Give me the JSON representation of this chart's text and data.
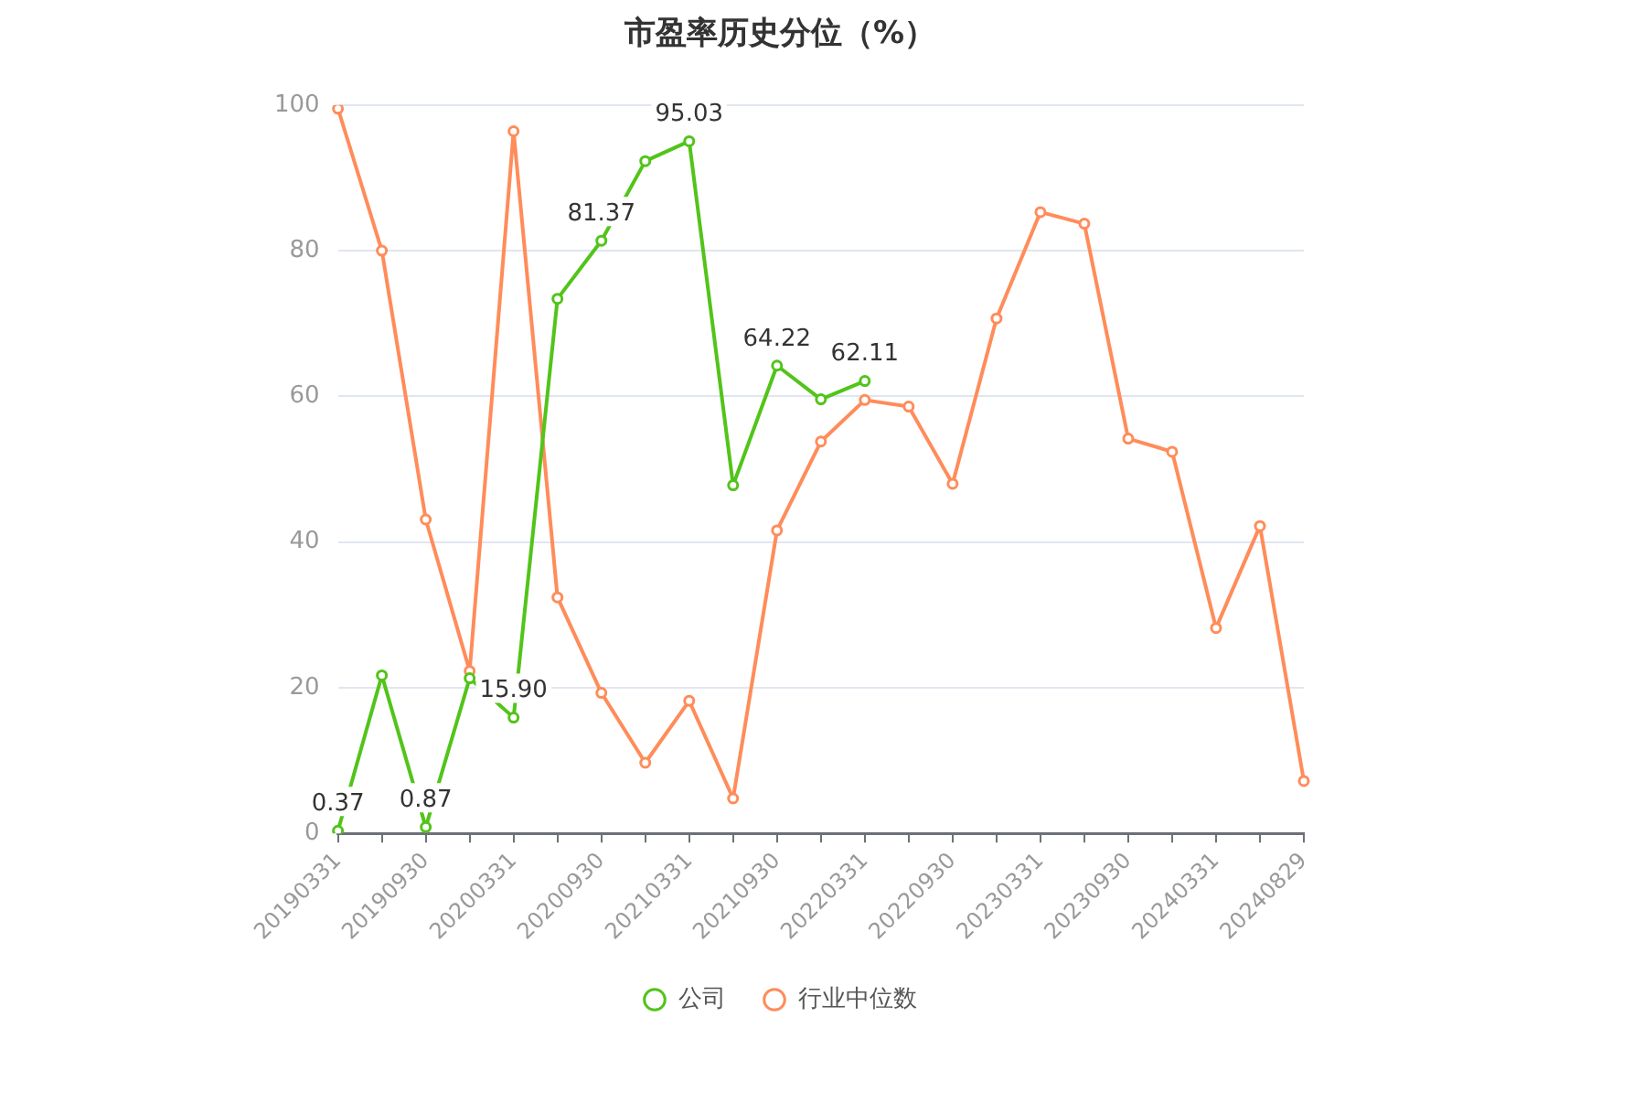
{
  "chart_data": {
    "type": "line",
    "title": "市盈率历史分位（%）",
    "categories": [
      "20190331",
      null,
      "20190930",
      null,
      "20200331",
      null,
      "20200930",
      null,
      "20210331",
      null,
      "20210930",
      null,
      "20220331",
      null,
      "20220930",
      null,
      "20230331",
      null,
      "20230930",
      null,
      "20240331",
      null,
      "20240829"
    ],
    "series": [
      {
        "name": "公司",
        "color": "#52c41a",
        "values": [
          0.37,
          21.7,
          0.87,
          21.3,
          15.9,
          73.4,
          81.37,
          92.3,
          95.03,
          47.8,
          64.22,
          59.6,
          62.11,
          null,
          null,
          null,
          null,
          null,
          null,
          null,
          null,
          null,
          null
        ],
        "value_labels": [
          "0.37",
          null,
          "0.87",
          null,
          "15.90",
          null,
          "81.37",
          null,
          "95.03",
          null,
          "64.22",
          null,
          "62.11",
          null,
          null,
          null,
          null,
          null,
          null,
          null,
          null,
          null,
          null
        ]
      },
      {
        "name": "行业中位数",
        "color": "#ff8c5a",
        "values": [
          99.5,
          80.0,
          43.1,
          22.3,
          96.4,
          32.4,
          19.3,
          9.7,
          18.2,
          4.8,
          41.6,
          53.8,
          59.5,
          58.6,
          48.0,
          70.7,
          85.3,
          83.7,
          54.2,
          52.4,
          28.2,
          42.2,
          7.2
        ]
      }
    ],
    "ylim": [
      0,
      100
    ],
    "yticks": [
      0,
      20,
      40,
      60,
      80,
      100
    ],
    "grid": "y",
    "legend": "bottom",
    "marker": "circle",
    "line_style": "solid"
  }
}
